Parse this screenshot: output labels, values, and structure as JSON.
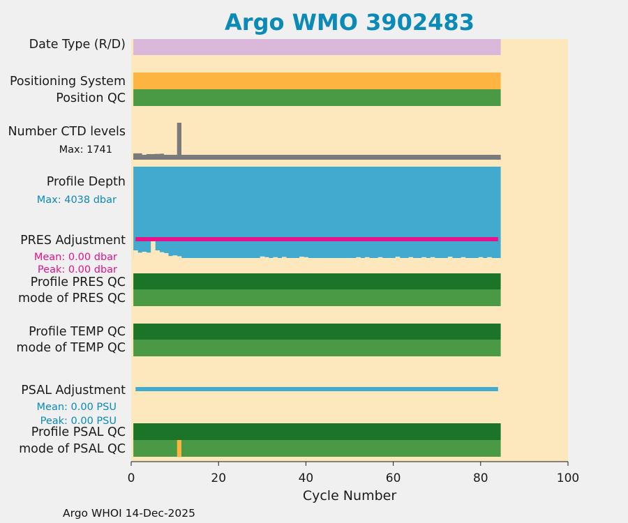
{
  "chart_data": {
    "type": "bar",
    "title": "Argo WMO 3902483",
    "xlabel": "Cycle Number",
    "xlim": [
      0,
      100
    ],
    "xticks": [
      "0",
      "20",
      "40",
      "60",
      "80",
      "100"
    ],
    "last_cycle": 84,
    "footer": "Argo WHOI 14-Dec-2025",
    "colors": {
      "background": "#fde7bd",
      "date_type": "#d9b8da",
      "positioning": "#fdb441",
      "good": "#4a9a45",
      "dark_good": "#1b7428",
      "ctd": "#7a7a7a",
      "depth": "#42aacf",
      "pres_adj": "#e5128a",
      "psal_adj": "#42aacf",
      "flag_orange": "#fdb441",
      "title": "#0a8ab8"
    },
    "rows": {
      "date_type": {
        "label": "Date Type (R/D)"
      },
      "positioning": {
        "label": "Positioning System"
      },
      "position_qc": {
        "label": "Position QC"
      },
      "ctd_levels": {
        "label": "Number CTD levels",
        "max_text": "Max: 1741",
        "max": 1741,
        "spikes": [
          {
            "cycle": 1,
            "value": 80
          },
          {
            "cycle": 2,
            "value": 80
          },
          {
            "cycle": 4,
            "value": 40
          },
          {
            "cycle": 5,
            "value": 40
          },
          {
            "cycle": 6,
            "value": 50
          },
          {
            "cycle": 7,
            "value": 60
          },
          {
            "cycle": 11,
            "value": 1741
          }
        ]
      },
      "profile_depth": {
        "label": "Profile Depth",
        "max_text": "Max: 4038 dbar",
        "max": 4038,
        "shallow": [
          {
            "cycle": 1,
            "value": 3700
          },
          {
            "cycle": 2,
            "value": 3800
          },
          {
            "cycle": 3,
            "value": 3760
          },
          {
            "cycle": 4,
            "value": 3800
          },
          {
            "cycle": 5,
            "value": 3200
          },
          {
            "cycle": 6,
            "value": 3700
          },
          {
            "cycle": 7,
            "value": 3780
          },
          {
            "cycle": 8,
            "value": 3820
          },
          {
            "cycle": 9,
            "value": 3950
          },
          {
            "cycle": 10,
            "value": 3920
          },
          {
            "cycle": 11,
            "value": 3960
          },
          {
            "cycle": 30,
            "value": 3970
          },
          {
            "cycle": 31,
            "value": 4000
          },
          {
            "cycle": 33,
            "value": 4000
          },
          {
            "cycle": 35,
            "value": 3990
          },
          {
            "cycle": 39,
            "value": 3980
          },
          {
            "cycle": 40,
            "value": 4000
          },
          {
            "cycle": 52,
            "value": 4000
          },
          {
            "cycle": 54,
            "value": 4000
          },
          {
            "cycle": 57,
            "value": 4000
          },
          {
            "cycle": 61,
            "value": 3980
          },
          {
            "cycle": 64,
            "value": 4000
          },
          {
            "cycle": 67,
            "value": 4000
          },
          {
            "cycle": 69,
            "value": 4000
          },
          {
            "cycle": 73,
            "value": 3980
          },
          {
            "cycle": 76,
            "value": 4000
          },
          {
            "cycle": 80,
            "value": 4000
          },
          {
            "cycle": 82,
            "value": 4000
          }
        ]
      },
      "pres_adjustment": {
        "label": "PRES Adjustment",
        "mean_text": "Mean: 0.00 dbar",
        "peak_text": "Peak: 0.00 dbar",
        "mean": 0.0,
        "peak": 0.0
      },
      "profile_pres_qc": {
        "label": "Profile PRES QC"
      },
      "mode_pres_qc": {
        "label": "mode of PRES QC"
      },
      "profile_temp_qc": {
        "label": "Profile TEMP QC"
      },
      "mode_temp_qc": {
        "label": "mode of TEMP QC"
      },
      "psal_adjustment": {
        "label": "PSAL Adjustment",
        "mean_text": "Mean: 0.00 PSU",
        "peak_text": "Peak: 0.00 PSU",
        "mean": 0.0,
        "peak": 0.0
      },
      "profile_psal_qc": {
        "label": "Profile PSAL QC"
      },
      "mode_psal_qc": {
        "label": "mode of PSAL QC",
        "flagged_cycles": [
          11
        ]
      }
    }
  }
}
